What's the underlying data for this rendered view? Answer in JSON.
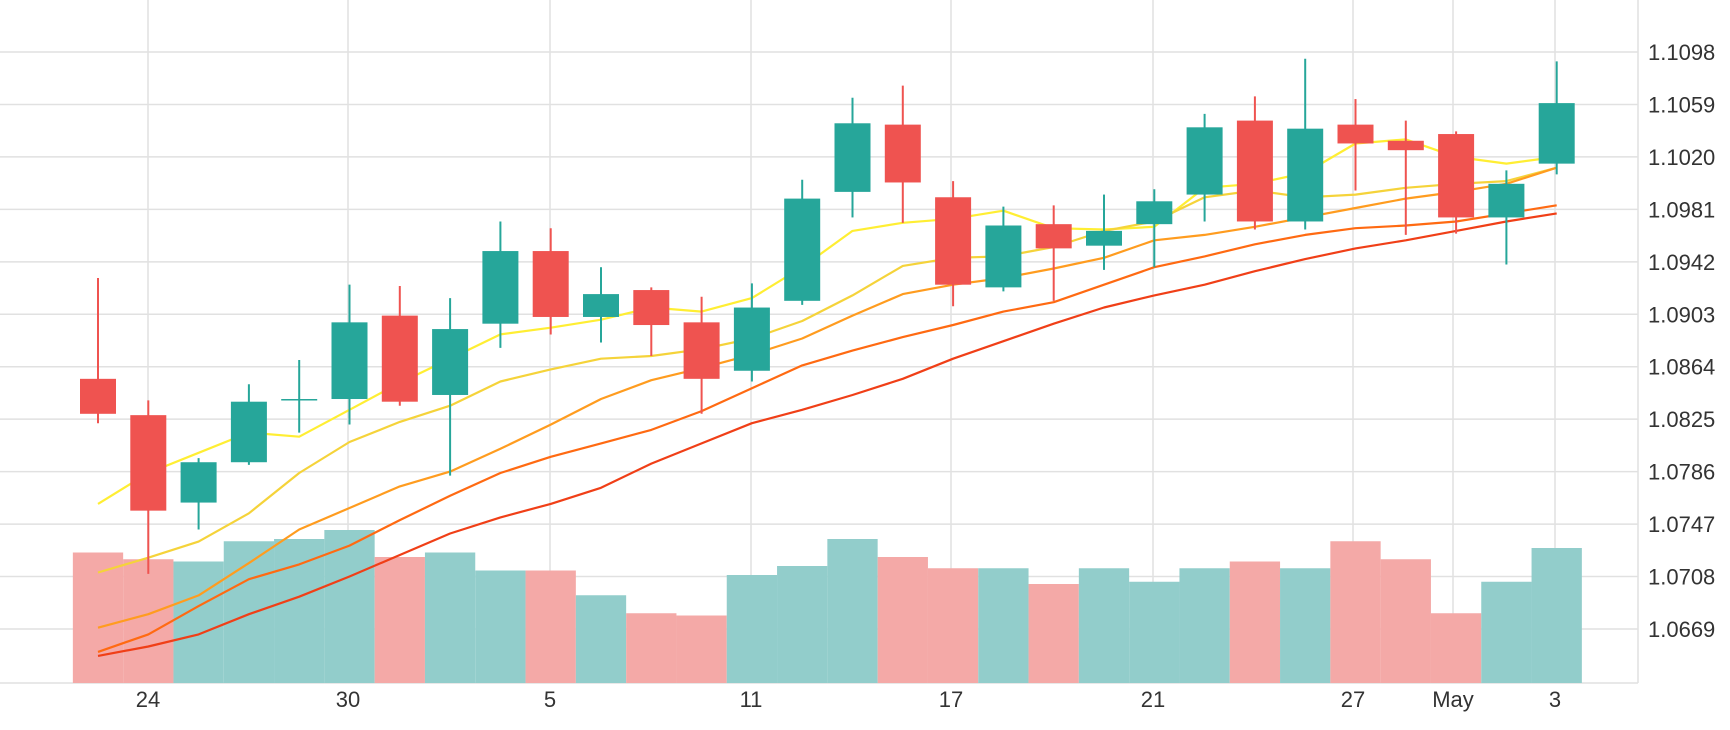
{
  "chart_data": {
    "type": "candlestick",
    "x_ticks": [
      "24",
      "30",
      "5",
      "11",
      "17",
      "21",
      "27",
      "May",
      "3"
    ],
    "y_ticks": [
      "1.1098",
      "1.1059",
      "1.1020",
      "1.0981",
      "1.0942",
      "1.0903",
      "1.0864",
      "1.0825",
      "1.0786",
      "1.0747",
      "1.0708",
      "1.0669"
    ],
    "ylim": [
      1.063,
      1.113
    ],
    "grid": true,
    "colors": {
      "up": "#26a69a",
      "down": "#ef5350",
      "volume_up": "#92cdcb",
      "volume_down": "#f4a9a7"
    },
    "candles": [
      {
        "date": "Mar 23",
        "open": 1.0855,
        "high": 1.093,
        "low": 1.0822,
        "close": 1.0829
      },
      {
        "date": "Mar 24",
        "open": 1.0828,
        "high": 1.0839,
        "low": 1.071,
        "close": 1.0757
      },
      {
        "date": "Mar 27",
        "open": 1.0763,
        "high": 1.0796,
        "low": 1.0743,
        "close": 1.0793
      },
      {
        "date": "Mar 28",
        "open": 1.0793,
        "high": 1.0851,
        "low": 1.0791,
        "close": 1.0838
      },
      {
        "date": "Mar 29",
        "open": 1.084,
        "high": 1.0869,
        "low": 1.0815,
        "close": 1.084
      },
      {
        "date": "Mar 30",
        "open": 1.084,
        "high": 1.0925,
        "low": 1.0821,
        "close": 1.0897
      },
      {
        "date": "Mar 31",
        "open": 1.0902,
        "high": 1.0924,
        "low": 1.0835,
        "close": 1.0838
      },
      {
        "date": "Apr 3",
        "open": 1.0843,
        "high": 1.0915,
        "low": 1.0783,
        "close": 1.0892
      },
      {
        "date": "Apr 4",
        "open": 1.0896,
        "high": 1.0972,
        "low": 1.0878,
        "close": 1.095
      },
      {
        "date": "Apr 5",
        "open": 1.095,
        "high": 1.0967,
        "low": 1.0888,
        "close": 1.0901
      },
      {
        "date": "Apr 6",
        "open": 1.0901,
        "high": 1.0938,
        "low": 1.0882,
        "close": 1.0918
      },
      {
        "date": "Apr 7",
        "open": 1.0921,
        "high": 1.0923,
        "low": 1.0872,
        "close": 1.0895
      },
      {
        "date": "Apr 10",
        "open": 1.0897,
        "high": 1.0916,
        "low": 1.0829,
        "close": 1.0855
      },
      {
        "date": "Apr 11",
        "open": 1.0861,
        "high": 1.0926,
        "low": 1.0853,
        "close": 1.0908
      },
      {
        "date": "Apr 12",
        "open": 1.0913,
        "high": 1.1003,
        "low": 1.091,
        "close": 1.0989
      },
      {
        "date": "Apr 13",
        "open": 1.0994,
        "high": 1.1064,
        "low": 1.0975,
        "close": 1.1045
      },
      {
        "date": "Apr 14",
        "open": 1.1044,
        "high": 1.1073,
        "low": 1.0971,
        "close": 1.1001
      },
      {
        "date": "Apr 17",
        "open": 1.099,
        "high": 1.1002,
        "low": 1.0909,
        "close": 1.0925
      },
      {
        "date": "Apr 18",
        "open": 1.0923,
        "high": 1.0983,
        "low": 1.092,
        "close": 1.0969
      },
      {
        "date": "Apr 19",
        "open": 1.097,
        "high": 1.0984,
        "low": 1.0913,
        "close": 1.0952
      },
      {
        "date": "Apr 20",
        "open": 1.0954,
        "high": 1.0992,
        "low": 1.0936,
        "close": 1.0965
      },
      {
        "date": "Apr 21",
        "open": 1.097,
        "high": 1.0996,
        "low": 1.0938,
        "close": 1.0987
      },
      {
        "date": "Apr 24",
        "open": 1.0992,
        "high": 1.1052,
        "low": 1.0972,
        "close": 1.1042
      },
      {
        "date": "Apr 25",
        "open": 1.1047,
        "high": 1.1065,
        "low": 1.0966,
        "close": 1.0972
      },
      {
        "date": "Apr 26",
        "open": 1.0972,
        "high": 1.1093,
        "low": 1.0966,
        "close": 1.1041
      },
      {
        "date": "Apr 27",
        "open": 1.1044,
        "high": 1.1063,
        "low": 1.0995,
        "close": 1.103
      },
      {
        "date": "Apr 28",
        "open": 1.1032,
        "high": 1.1047,
        "low": 1.0962,
        "close": 1.1025
      },
      {
        "date": "May 1",
        "open": 1.1037,
        "high": 1.1039,
        "low": 1.0963,
        "close": 1.0975
      },
      {
        "date": "May 2",
        "open": 1.0975,
        "high": 1.101,
        "low": 1.094,
        "close": 1.1
      },
      {
        "date": "May 3",
        "open": 1.1015,
        "high": 1.1091,
        "low": 1.1007,
        "close": 1.106
      }
    ],
    "volumes": [
      58,
      55,
      54,
      63,
      64,
      68,
      56,
      58,
      50,
      50,
      39,
      31,
      30,
      48,
      52,
      64,
      56,
      51,
      51,
      44,
      51,
      45,
      51,
      54,
      51,
      63,
      55,
      31,
      45,
      60
    ],
    "moving_averages": [
      {
        "color": "#ffee33",
        "values": [
          1.0762,
          1.0785,
          1.08,
          1.0815,
          1.0812,
          1.0832,
          1.0852,
          1.087,
          1.0888,
          1.0893,
          1.0899,
          1.0908,
          1.0905,
          1.0915,
          1.0938,
          1.0965,
          1.0971,
          1.0974,
          1.098,
          1.0967,
          1.0966,
          1.0968,
          1.0997,
          1.1,
          1.1008,
          1.103,
          1.1033,
          1.102,
          1.1015,
          1.102
        ]
      },
      {
        "color": "#f5d33a",
        "values": [
          1.0711,
          1.0722,
          1.0734,
          1.0755,
          1.0785,
          1.0808,
          1.0823,
          1.0835,
          1.0853,
          1.0862,
          1.087,
          1.0872,
          1.0877,
          1.0885,
          1.0898,
          1.0917,
          1.0939,
          1.0945,
          1.0946,
          1.0953,
          1.0965,
          1.0972,
          1.099,
          1.0995,
          1.099,
          1.0992,
          1.0997,
          1.1,
          1.1002,
          1.1012
        ]
      },
      {
        "color": "#ff9c1f",
        "values": [
          1.067,
          1.068,
          1.0694,
          1.0718,
          1.0743,
          1.0759,
          1.0775,
          1.0786,
          1.0803,
          1.0821,
          1.084,
          1.0854,
          1.0863,
          1.0873,
          1.0885,
          1.0902,
          1.0918,
          1.0925,
          1.093,
          1.0937,
          1.0945,
          1.0958,
          1.0962,
          1.0968,
          1.0975,
          1.0982,
          1.0989,
          1.0994,
          1.1,
          1.1012
        ]
      },
      {
        "color": "#ff6a12",
        "values": [
          1.0652,
          1.0665,
          1.0686,
          1.0706,
          1.0717,
          1.0731,
          1.075,
          1.0768,
          1.0785,
          1.0797,
          1.0807,
          1.0817,
          1.0831,
          1.0848,
          1.0865,
          1.0876,
          1.0886,
          1.0895,
          1.0905,
          1.0912,
          1.0925,
          1.0938,
          1.0946,
          1.0955,
          1.0962,
          1.0967,
          1.0969,
          1.0972,
          1.0978,
          1.0984
        ]
      },
      {
        "color": "#f03f17",
        "values": [
          1.0649,
          1.0656,
          1.0665,
          1.068,
          1.0693,
          1.0708,
          1.0724,
          1.074,
          1.0752,
          1.0762,
          1.0774,
          1.0792,
          1.0807,
          1.0822,
          1.0832,
          1.0843,
          1.0855,
          1.087,
          1.0883,
          1.0896,
          1.0908,
          1.0917,
          1.0925,
          1.0935,
          1.0944,
          1.0952,
          1.0958,
          1.0965,
          1.0972,
          1.0978
        ]
      }
    ]
  }
}
